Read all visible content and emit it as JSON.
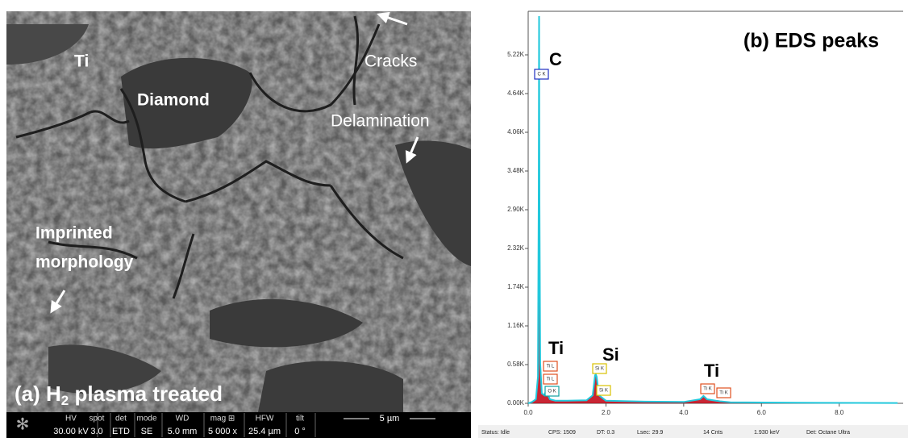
{
  "sem": {
    "labels": [
      "Ti",
      "Diamond",
      "Cracks",
      "Delamination",
      "Imprinted",
      "morphology"
    ],
    "caption": {
      "prefix": "(a) H",
      "sub": "2",
      "suffix": " plasma treated"
    },
    "info_headers": [
      "HV",
      "spot",
      "det",
      "mode",
      "WD",
      "mag ⊞",
      "HFW",
      "tilt"
    ],
    "info_values": [
      "30.00 kV",
      "3.0",
      "ETD",
      "SE",
      "5.0 mm",
      "5 000 x",
      "25.4 µm",
      "0 °"
    ],
    "scale_bar": "5 µm"
  },
  "chart_data": {
    "type": "line",
    "title": "(b) EDS peaks",
    "x": [
      0,
      0.1,
      0.2,
      0.25,
      0.27,
      0.28,
      0.29,
      0.31,
      0.35,
      0.42,
      0.45,
      0.48,
      0.52,
      0.56,
      0.7,
      1.0,
      1.5,
      1.66,
      1.72,
      1.74,
      1.76,
      1.82,
      2.0,
      3.0,
      4.0,
      4.42,
      4.51,
      4.6,
      4.93,
      5.2,
      7.0,
      9.5
    ],
    "values": [
      0,
      20,
      60,
      400,
      3000,
      5800,
      3000,
      600,
      150,
      120,
      180,
      120,
      110,
      60,
      40,
      40,
      45,
      120,
      420,
      430,
      400,
      120,
      40,
      25,
      20,
      60,
      110,
      60,
      30,
      15,
      8,
      5
    ],
    "color": "#22c8dc",
    "fill_color": "#c00010",
    "xlim": [
      0,
      9.5
    ],
    "ylim": [
      0,
      5800
    ],
    "xticks": [
      {
        "value": 0,
        "label": "0.0"
      },
      {
        "value": 2,
        "label": "2.0"
      },
      {
        "value": 4,
        "label": "4.0"
      },
      {
        "value": 6,
        "label": "6.0"
      },
      {
        "value": 8,
        "label": "8.0"
      }
    ],
    "yticks": [
      {
        "value": 0,
        "label": "0.00K"
      },
      {
        "value": 580,
        "label": "0.58K"
      },
      {
        "value": 1160,
        "label": "1.16K"
      },
      {
        "value": 1740,
        "label": "1.74K"
      },
      {
        "value": 2320,
        "label": "2.32K"
      },
      {
        "value": 2900,
        "label": "2.90K"
      },
      {
        "value": 3480,
        "label": "3.48K"
      },
      {
        "value": 4060,
        "label": "4.06K"
      },
      {
        "value": 4640,
        "label": "4.64K"
      },
      {
        "value": 5220,
        "label": "5.22K"
      }
    ],
    "annotations": [
      "C",
      "Ti",
      "Si",
      "Ti"
    ],
    "peak_labels": [
      {
        "text": "C K",
        "color": "#2030c0"
      },
      {
        "text": "Ti L",
        "color": "#e05020"
      },
      {
        "text": "Ti L",
        "color": "#e05020"
      },
      {
        "text": "O K",
        "color": "#10a0a0"
      },
      {
        "text": "Si K",
        "color": "#d8c000"
      },
      {
        "text": "Si K",
        "color": "#d8c000"
      },
      {
        "text": "Ti K",
        "color": "#e05020"
      },
      {
        "text": "Ti K",
        "color": "#e05020"
      }
    ],
    "status": [
      "Status: Idle",
      "CPS: 1509",
      "DT: 0.3",
      "Lsec: 29.9",
      "14 Cnts",
      "1.930 keV",
      "Det: Octane Ultra"
    ]
  }
}
